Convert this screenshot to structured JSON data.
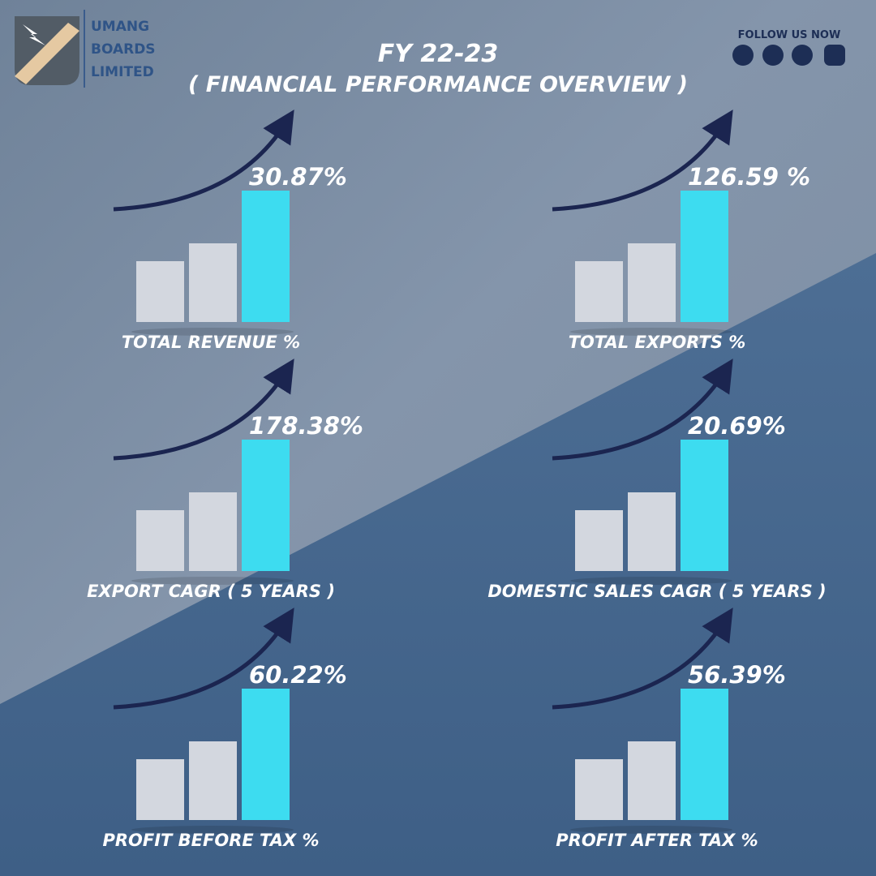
{
  "logo": {
    "lines": [
      "UMANG",
      "BOARDS",
      "LIMITED"
    ]
  },
  "header": {
    "title": "FY 22-23",
    "subtitle": "( FINANCIAL PERFORMANCE OVERVIEW )"
  },
  "social": {
    "label": "FOLLOW US NOW"
  },
  "panels": [
    {
      "value": "30.87%",
      "label": "TOTAL REVENUE %"
    },
    {
      "value": "126.59 %",
      "label": "TOTAL EXPORTS %"
    },
    {
      "value": "178.38%",
      "label": "EXPORT CAGR ( 5 YEARS )"
    },
    {
      "value": "20.69%",
      "label": "DOMESTIC SALES CAGR ( 5 YEARS )"
    },
    {
      "value": "60.22%",
      "label": "PROFIT BEFORE TAX  %"
    },
    {
      "value": "56.39%",
      "label": "PROFIT AFTER TAX %"
    }
  ]
}
